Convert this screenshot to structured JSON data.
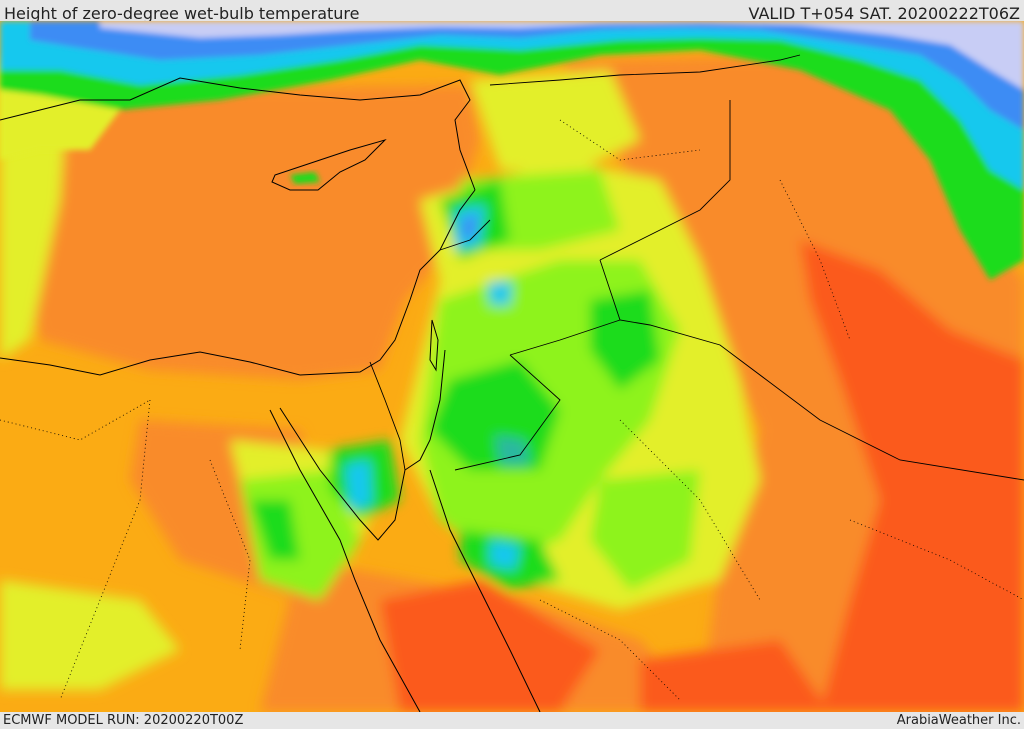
{
  "header": {
    "title": "Height of zero-degree wet-bulb temperature",
    "valid": "VALID T+054 SAT. 20200222T06Z"
  },
  "footer": {
    "model_run": "ECMWF MODEL RUN: 20200220T00Z",
    "credit": "ArabiaWeather Inc."
  },
  "colors": {
    "red": "#fb5a1b",
    "orange_dark": "#f98b2c",
    "orange": "#fbab14",
    "yellow": "#e3ef2a",
    "lime": "#8ef31a",
    "green": "#1fdc1d",
    "teal": "#2bb8a0",
    "cyan": "#19c8ee",
    "blue": "#3d8cf4",
    "lavender": "#c8cdf5",
    "borders": "#000000"
  }
}
